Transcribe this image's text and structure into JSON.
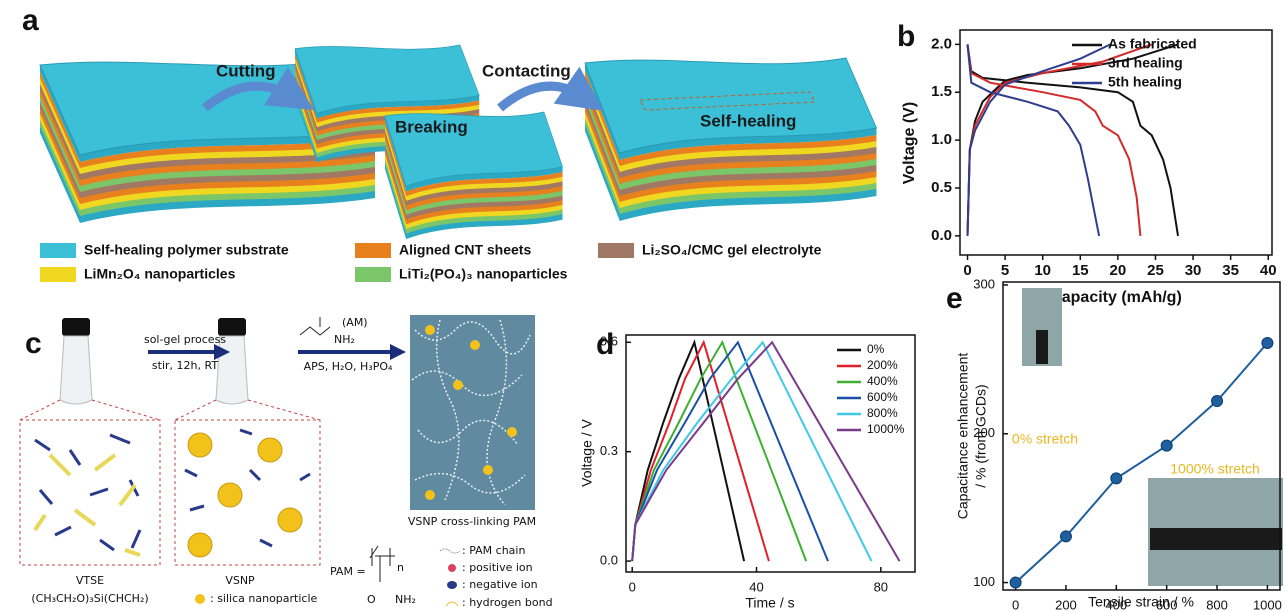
{
  "figure_a": {
    "label": "a",
    "steps": [
      "Cutting",
      "Contacting",
      "Breaking",
      "Self-healing"
    ],
    "legend": [
      "Self-healing polymer substrate",
      "Aligned CNT sheets",
      "Li₂SO₄/CMC gel electrolyte",
      "LiMn₂O₄ nanoparticles",
      "LiTi₂(PO₄)₃ nanoparticles"
    ]
  },
  "figure_c": {
    "label": "c",
    "step1_top": "sol-gel process",
    "step1_bottom": "stir, 12h, RT",
    "monomer": "(AM)",
    "monomer_group": "NH₂",
    "step2_bottom": "APS, H₂O, H₃PO₄",
    "network": "VSNP cross-linking PAM",
    "vtse": "VTSE",
    "vtse_formula": "(CH₃CH₂O)₃Si(CHCH₂)",
    "vsnp": "VSNP",
    "silica": ": silica nanoparticle",
    "pam": "PAM =",
    "pam_n": "n",
    "pam_o": "O",
    "pam_nh2": "NH₂",
    "key": [
      ": PAM chain",
      ": positive ion",
      ": negative ion",
      ": hydrogen bond"
    ]
  },
  "chart_data": [
    {
      "type": "line",
      "panel_label": "b",
      "xlabel": "Capacity (mAh/g)",
      "ylabel": "Voltage (V)",
      "xlim": [
        -1,
        40.5
      ],
      "ylim": [
        -0.2,
        2.15
      ],
      "xticks": [
        0,
        5,
        10,
        15,
        20,
        25,
        30,
        35,
        40
      ],
      "yticks": [
        {
          "value": 0,
          "label": "0.0"
        },
        {
          "value": 0.5,
          "label": "0.5"
        },
        {
          "value": 1,
          "label": "1.0"
        },
        {
          "value": 1.5,
          "label": "1.5"
        },
        {
          "value": 2,
          "label": "2.0"
        }
      ],
      "legend": "upper right",
      "series": [
        {
          "name": "As fabricated",
          "color": "#111111",
          "x": [
            0,
            0.3,
            1,
            2,
            4,
            5,
            8,
            15,
            22,
            28,
            null,
            0,
            0.5,
            2,
            8,
            15,
            20,
            22,
            23,
            24.5,
            26,
            27,
            28
          ],
          "values": [
            0,
            0.9,
            1.2,
            1.4,
            1.55,
            1.62,
            1.68,
            1.75,
            1.85,
            2.0,
            null,
            2.0,
            1.72,
            1.65,
            1.6,
            1.55,
            1.5,
            1.4,
            1.15,
            1.05,
            0.8,
            0.5,
            0
          ]
        },
        {
          "name": "3rd healing",
          "color": "#d42a2a",
          "x": [
            0,
            0.3,
            1,
            3,
            5,
            10,
            18,
            24.5,
            null,
            0,
            0.5,
            3,
            10,
            15,
            17,
            18,
            20,
            21.5,
            22.5,
            23
          ],
          "values": [
            0,
            0.9,
            1.15,
            1.45,
            1.6,
            1.7,
            1.82,
            2.0,
            null,
            2.0,
            1.7,
            1.6,
            1.5,
            1.42,
            1.3,
            1.15,
            1.05,
            0.8,
            0.4,
            0
          ]
        },
        {
          "name": "5th healing",
          "color": "#2e3d8f",
          "x": [
            0,
            0.3,
            1,
            3,
            5,
            10,
            15,
            19,
            null,
            0,
            0.5,
            3,
            8,
            12,
            13.5,
            15,
            16,
            17,
            17.5
          ],
          "values": [
            0,
            0.9,
            1.1,
            1.4,
            1.58,
            1.72,
            1.85,
            2.0,
            null,
            2.0,
            1.6,
            1.5,
            1.4,
            1.3,
            1.15,
            0.95,
            0.6,
            0.2,
            0
          ]
        }
      ]
    },
    {
      "type": "line",
      "panel_label": "d",
      "xlabel": "Time / s",
      "ylabel": "Voltage / V",
      "xlim": [
        -2,
        91
      ],
      "ylim": [
        -0.03,
        0.62
      ],
      "xticks": [
        0,
        40,
        80
      ],
      "yticks": [
        {
          "value": 0,
          "label": "0.0"
        },
        {
          "value": 0.3,
          "label": "0.3"
        },
        {
          "value": 0.6,
          "label": "0.6"
        }
      ],
      "legend": "upper right",
      "series": [
        {
          "name": "0%",
          "color": "#111111",
          "x": [
            0,
            1,
            5,
            10,
            15,
            20,
            28,
            36
          ],
          "values": [
            0,
            0.1,
            0.25,
            0.38,
            0.5,
            0.6,
            0.3,
            0
          ]
        },
        {
          "name": "200%",
          "color": "#e0202a",
          "x": [
            0,
            1,
            6,
            12,
            17,
            23,
            33.5,
            44
          ],
          "values": [
            0,
            0.1,
            0.25,
            0.38,
            0.5,
            0.6,
            0.3,
            0
          ]
        },
        {
          "name": "400%",
          "color": "#3cb030",
          "x": [
            0,
            1,
            7,
            15,
            22,
            29,
            42.5,
            56
          ],
          "values": [
            0,
            0.1,
            0.25,
            0.38,
            0.5,
            0.6,
            0.3,
            0
          ]
        },
        {
          "name": "600%",
          "color": "#1a4fa8",
          "x": [
            0,
            1,
            8,
            17,
            25,
            34,
            48.5,
            63
          ],
          "values": [
            0,
            0.1,
            0.25,
            0.38,
            0.5,
            0.6,
            0.3,
            0
          ]
        },
        {
          "name": "800%",
          "color": "#40c8e8",
          "x": [
            0,
            1,
            10,
            21,
            32,
            42,
            59.5,
            77
          ],
          "values": [
            0,
            0.1,
            0.25,
            0.38,
            0.5,
            0.6,
            0.3,
            0
          ]
        },
        {
          "name": "1000%",
          "color": "#7a3a8a",
          "x": [
            0,
            1,
            11,
            23,
            34,
            45,
            65.5,
            86
          ],
          "values": [
            0,
            0.1,
            0.25,
            0.38,
            0.5,
            0.6,
            0.3,
            0
          ]
        }
      ]
    },
    {
      "type": "line",
      "panel_label": "e",
      "xlabel": "Tensile strain / %",
      "ylabel": [
        "Capacitance enhancement",
        "/ % (from GCDs)"
      ],
      "xlim": [
        -50,
        1050
      ],
      "ylim": [
        95,
        302
      ],
      "xticks": [
        0,
        200,
        400,
        600,
        800,
        1000
      ],
      "yticks": [
        100,
        200,
        300
      ],
      "markers": true,
      "annotations": [
        "0% stretch",
        "1000% stretch"
      ],
      "series": [
        {
          "color": "#1f5fa0",
          "x": [
            0,
            200,
            400,
            600,
            800,
            1000
          ],
          "values": [
            100,
            131,
            170,
            192,
            222,
            261
          ]
        }
      ]
    }
  ]
}
